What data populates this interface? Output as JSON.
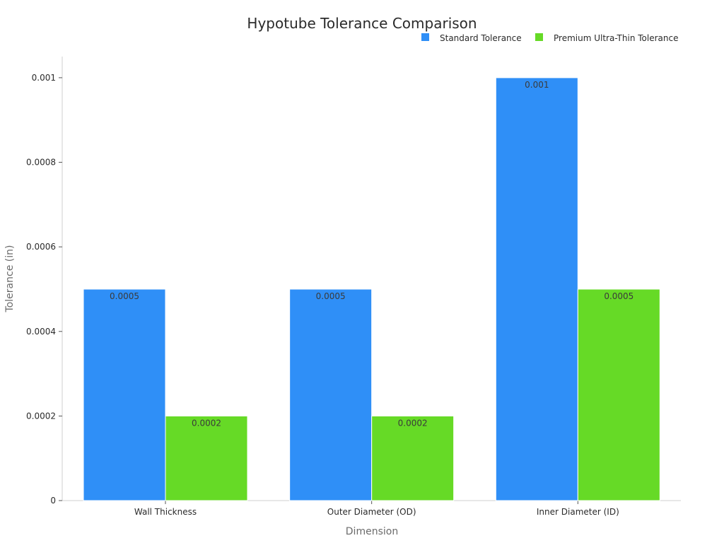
{
  "chart_data": {
    "type": "bar",
    "title": "Hypotube Tolerance Comparison",
    "xlabel": "Dimension",
    "ylabel": "Tolerance (in)",
    "categories": [
      "Wall Thickness",
      "Outer Diameter (OD)",
      "Inner Diameter (ID)"
    ],
    "series": [
      {
        "name": "Standard Tolerance",
        "color": "#2F8FF7",
        "values": [
          0.0005,
          0.0005,
          0.001
        ],
        "labels": [
          "0.0005",
          "0.0005",
          "0.001"
        ]
      },
      {
        "name": "Premium Ultra-Thin Tolerance",
        "color": "#66DA26",
        "values": [
          0.0002,
          0.0002,
          0.0005
        ],
        "labels": [
          "0.0002",
          "0.0002",
          "0.0005"
        ]
      }
    ],
    "ylim": [
      0,
      0.00105
    ],
    "yticks": [
      0,
      0.0002,
      0.0004,
      0.0006,
      0.0008,
      0.001
    ],
    "ytick_labels": [
      "0",
      "0.0002",
      "0.0004",
      "0.0006",
      "0.0008",
      "0.001"
    ],
    "grid": false,
    "legend": "top-right"
  }
}
